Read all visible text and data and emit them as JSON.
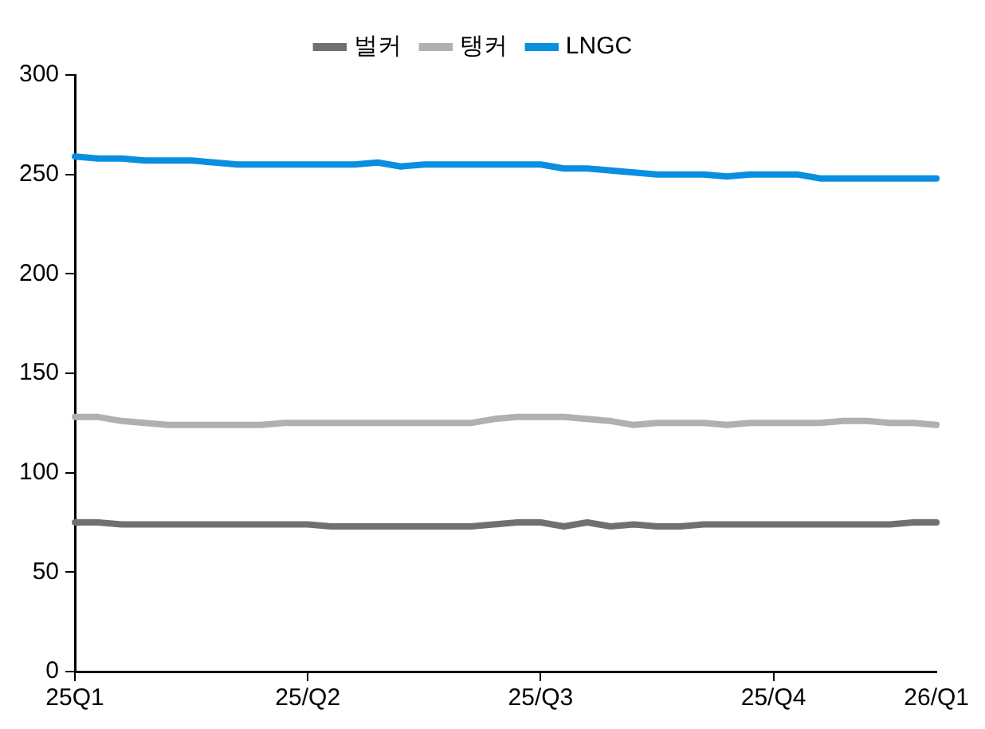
{
  "chart_data": {
    "type": "line",
    "categories": [
      "25Q1",
      null,
      null,
      null,
      null,
      null,
      null,
      null,
      null,
      null,
      "25/Q2",
      null,
      null,
      null,
      null,
      null,
      null,
      null,
      null,
      null,
      "25/Q3",
      null,
      null,
      null,
      null,
      null,
      null,
      null,
      null,
      null,
      "25/Q4",
      null,
      null,
      null,
      null,
      null,
      null,
      "26/Q1"
    ],
    "series": [
      {
        "name": "벌커",
        "color": "#707070",
        "values": [
          75,
          75,
          74,
          74,
          74,
          74,
          74,
          74,
          74,
          74,
          74,
          73,
          73,
          73,
          73,
          73,
          73,
          73,
          74,
          75,
          75,
          73,
          75,
          73,
          74,
          73,
          73,
          74,
          74,
          74,
          74,
          74,
          74,
          74,
          74,
          74,
          75,
          75
        ]
      },
      {
        "name": "탱커",
        "color": "#b0b0b0",
        "values": [
          128,
          128,
          126,
          125,
          124,
          124,
          124,
          124,
          124,
          125,
          125,
          125,
          125,
          125,
          125,
          125,
          125,
          125,
          127,
          128,
          128,
          128,
          127,
          126,
          124,
          125,
          125,
          125,
          124,
          125,
          125,
          125,
          125,
          126,
          126,
          125,
          125,
          124
        ]
      },
      {
        "name": "LNGC",
        "color": "#0a8fe0",
        "values": [
          259,
          258,
          258,
          257,
          257,
          257,
          256,
          255,
          255,
          255,
          255,
          255,
          255,
          256,
          254,
          255,
          255,
          255,
          255,
          255,
          255,
          253,
          253,
          252,
          251,
          250,
          250,
          250,
          249,
          250,
          250,
          250,
          248,
          248,
          248,
          248,
          248,
          248
        ]
      }
    ],
    "ylim": [
      0,
      300
    ],
    "yticks": [
      0,
      50,
      100,
      150,
      200,
      250,
      300
    ],
    "grid": false,
    "legend": "top",
    "marker": "none",
    "line_style": "solid"
  }
}
